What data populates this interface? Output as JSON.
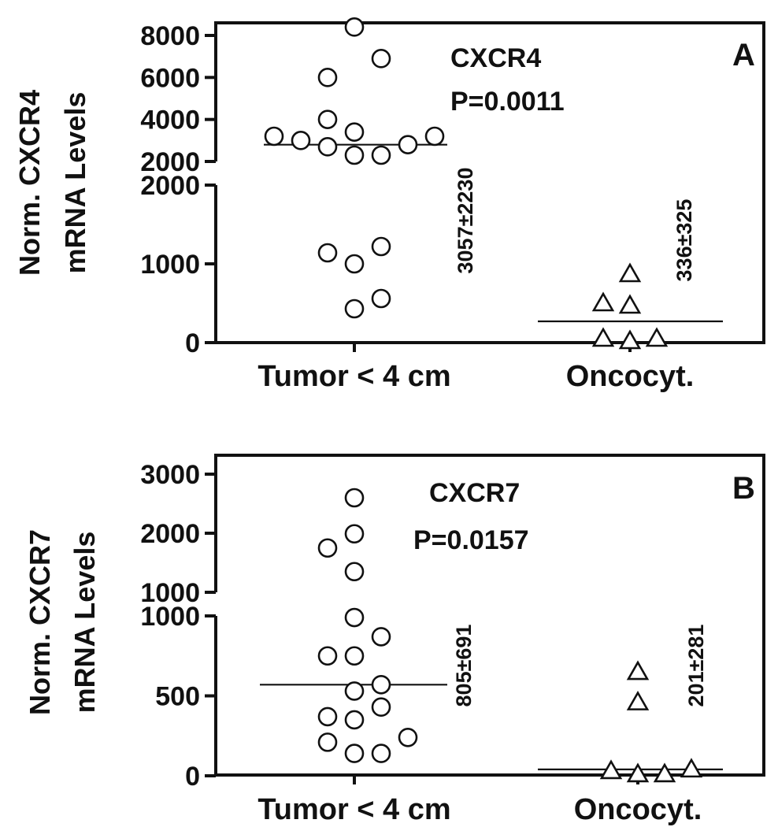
{
  "chart_data": [
    {
      "type": "scatter",
      "panel": "A",
      "title": "CXCR4",
      "annotation": "P=0.0011",
      "ylabel_lines": [
        "Norm. CXCR4",
        "mRNA Levels"
      ],
      "categories": [
        "Tumor < 4 cm",
        "Oncocyt."
      ],
      "broken_axis": true,
      "lower_segment": {
        "range": [
          0,
          2000
        ],
        "ticks": [
          0,
          1000,
          2000
        ],
        "tick_labels": [
          "0",
          "1000",
          "2000"
        ]
      },
      "upper_segment": {
        "range": [
          2000,
          8000
        ],
        "ticks": [
          2000,
          4000,
          6000,
          8000
        ],
        "tick_labels": [
          "2000",
          "4000",
          "6000",
          "8000"
        ]
      },
      "series": [
        {
          "category": "Tumor < 4 cm",
          "marker": "circle",
          "stat_label": "3057±2230",
          "mean": 2800,
          "points": [
            {
              "offset": 0,
              "value": 8400
            },
            {
              "offset": 1,
              "value": 6900
            },
            {
              "offset": -1,
              "value": 6000
            },
            {
              "offset": -1,
              "value": 4000
            },
            {
              "offset": 0,
              "value": 3400
            },
            {
              "offset": -3,
              "value": 3200
            },
            {
              "offset": -2,
              "value": 3000
            },
            {
              "offset": 3,
              "value": 3200
            },
            {
              "offset": -1,
              "value": 2700
            },
            {
              "offset": 2,
              "value": 2800
            },
            {
              "offset": 0,
              "value": 2300
            },
            {
              "offset": 1,
              "value": 2300
            },
            {
              "offset": 1,
              "value": 1220
            },
            {
              "offset": -1,
              "value": 1140
            },
            {
              "offset": 0,
              "value": 1000
            },
            {
              "offset": 1,
              "value": 560
            },
            {
              "offset": 0,
              "value": 430
            }
          ]
        },
        {
          "category": "Oncocyt.",
          "marker": "triangle",
          "stat_label": "336±325",
          "mean": 270,
          "points": [
            {
              "offset": 0,
              "value": 870
            },
            {
              "offset": -1,
              "value": 500
            },
            {
              "offset": 0,
              "value": 470
            },
            {
              "offset": -1,
              "value": 50
            },
            {
              "offset": 0,
              "value": 20
            },
            {
              "offset": 1,
              "value": 50
            }
          ]
        }
      ]
    },
    {
      "type": "scatter",
      "panel": "B",
      "title": "CXCR7",
      "annotation": "P=0.0157",
      "ylabel_lines": [
        "Norm. CXCR7",
        "mRNA Levels"
      ],
      "categories": [
        "Tumor < 4 cm",
        "Oncocyt."
      ],
      "broken_axis": true,
      "lower_segment": {
        "range": [
          0,
          1000
        ],
        "ticks": [
          0,
          500,
          1000
        ],
        "tick_labels": [
          "0",
          "500",
          "1000"
        ]
      },
      "upper_segment": {
        "range": [
          1000,
          3000
        ],
        "ticks": [
          1000,
          2000,
          3000
        ],
        "tick_labels": [
          "1000",
          "2000",
          "3000"
        ]
      },
      "series": [
        {
          "category": "Tumor < 4 cm",
          "marker": "circle",
          "stat_label": "805±691",
          "mean": 570,
          "points": [
            {
              "offset": 0,
              "value": 2600
            },
            {
              "offset": 0,
              "value": 1990
            },
            {
              "offset": -1,
              "value": 1750
            },
            {
              "offset": 0,
              "value": 1350
            },
            {
              "offset": 0,
              "value": 990
            },
            {
              "offset": 1,
              "value": 870
            },
            {
              "offset": -1,
              "value": 750
            },
            {
              "offset": 0,
              "value": 750
            },
            {
              "offset": 0,
              "value": 530
            },
            {
              "offset": 1,
              "value": 570
            },
            {
              "offset": -1,
              "value": 370
            },
            {
              "offset": 0,
              "value": 350
            },
            {
              "offset": 1,
              "value": 430
            },
            {
              "offset": -1,
              "value": 210
            },
            {
              "offset": 2,
              "value": 240
            },
            {
              "offset": 0,
              "value": 140
            },
            {
              "offset": 1,
              "value": 140
            }
          ]
        },
        {
          "category": "Oncocyt.",
          "marker": "triangle",
          "stat_label": "201±281",
          "mean": 40,
          "points": [
            {
              "offset": 0,
              "value": 650
            },
            {
              "offset": 0,
              "value": 460
            },
            {
              "offset": -1,
              "value": 30
            },
            {
              "offset": 0,
              "value": 10
            },
            {
              "offset": 1,
              "value": 10
            },
            {
              "offset": 2,
              "value": 40
            }
          ]
        }
      ]
    }
  ]
}
